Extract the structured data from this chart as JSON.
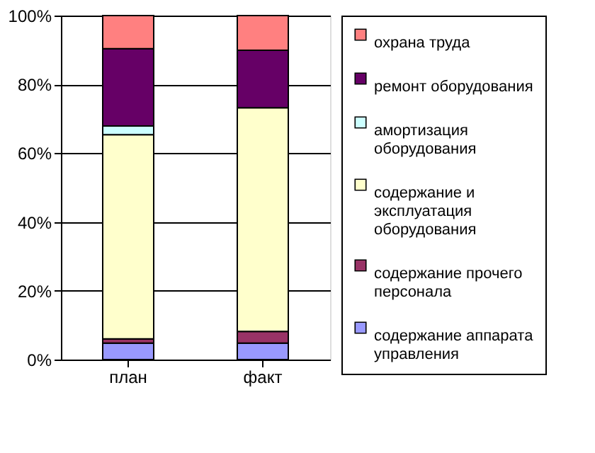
{
  "chart_data": {
    "type": "bar",
    "stacked": true,
    "categories": [
      "план",
      "факт"
    ],
    "series": [
      {
        "name": "содержание аппарата управления",
        "color": "#9999ff",
        "values": [
          4.8,
          4.8
        ]
      },
      {
        "name": "содержание прочего персонала",
        "color": "#993366",
        "values": [
          1.2,
          3.4
        ]
      },
      {
        "name": "содержание и эксплуатация оборудования",
        "color": "#ffffcc",
        "values": [
          59.4,
          65.0
        ]
      },
      {
        "name": "амортизация оборудования",
        "color": "#ccffff",
        "values": [
          2.5,
          null
        ]
      },
      {
        "name": "ремонт оборудования",
        "color": "#660066",
        "values": [
          22.5,
          16.7
        ]
      },
      {
        "name": "охрана труда",
        "color": "#ff8080",
        "values": [
          9.6,
          10.1
        ]
      }
    ],
    "ylim": [
      0,
      100
    ],
    "yticks": [
      {
        "value": 0,
        "label": "0%"
      },
      {
        "value": 20,
        "label": "20%"
      },
      {
        "value": 40,
        "label": "40%"
      },
      {
        "value": 60,
        "label": "60%"
      },
      {
        "value": 80,
        "label": "80%"
      },
      {
        "value": 100,
        "label": "100%"
      }
    ],
    "grid": "y",
    "legend": "right"
  }
}
